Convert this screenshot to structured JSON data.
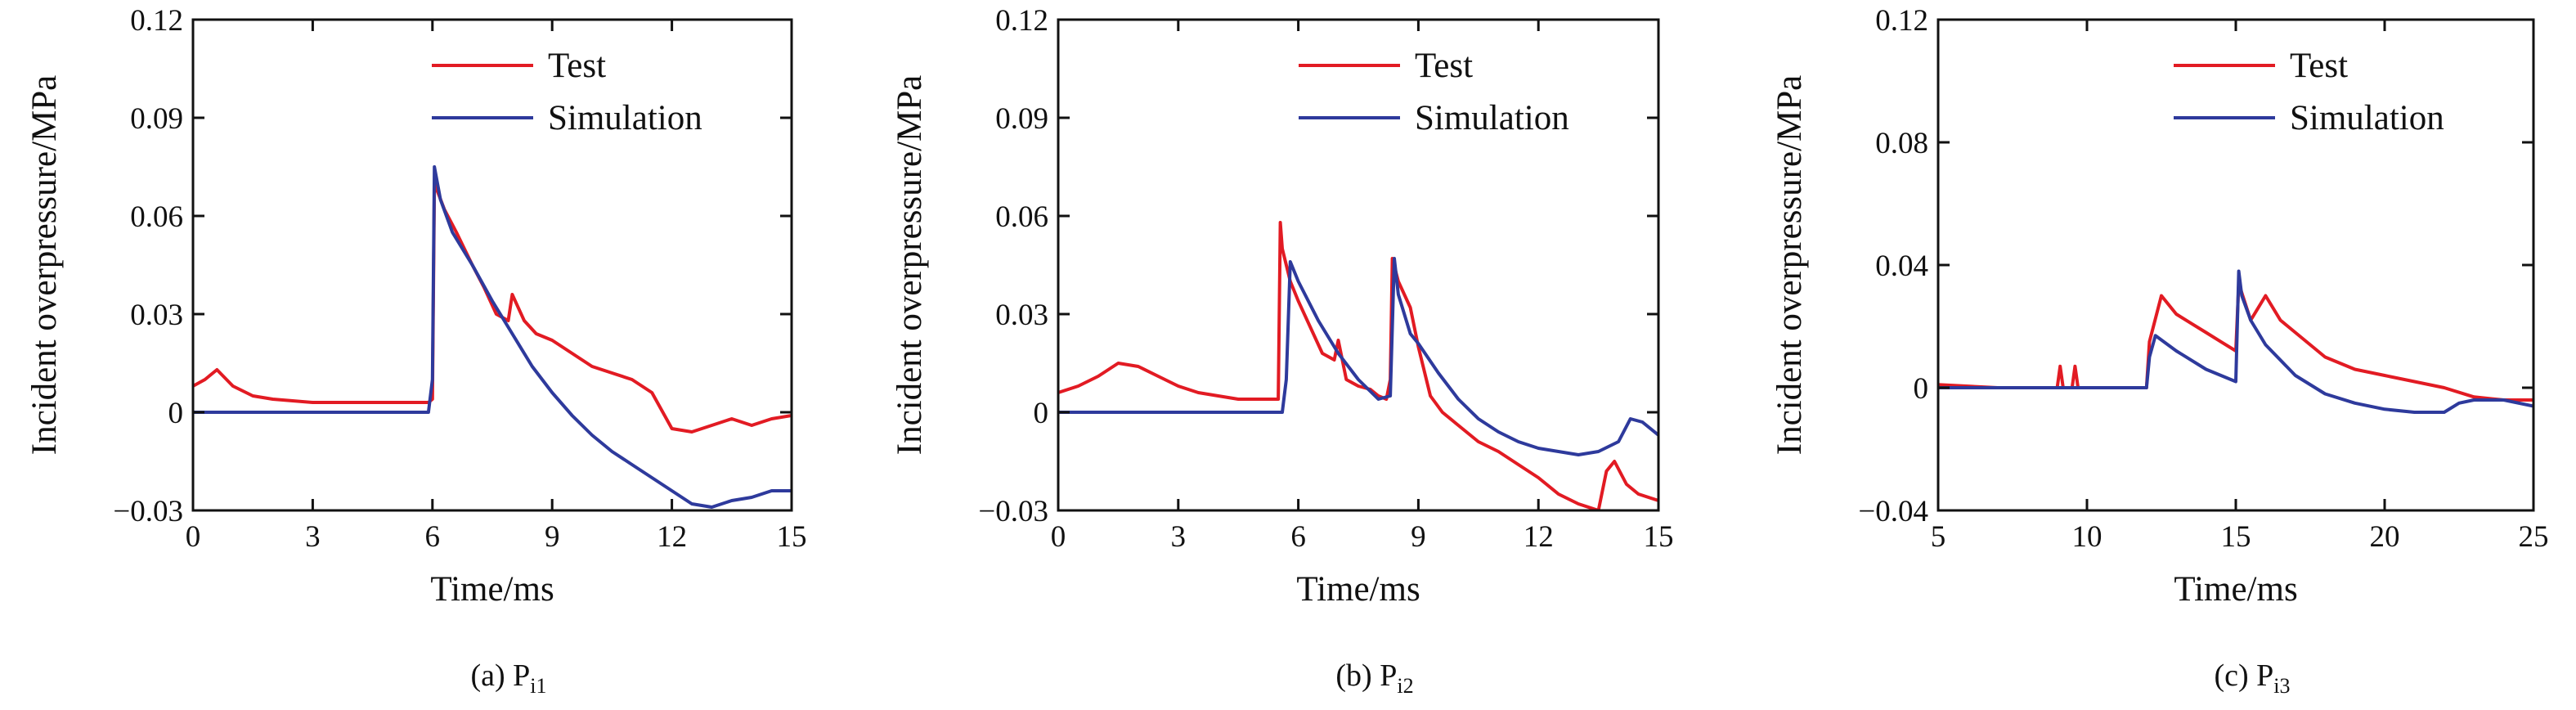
{
  "colors": {
    "test": "#e21b23",
    "simulation": "#2e3a9c",
    "axis": "#111111"
  },
  "chart_data": [
    {
      "type": "line",
      "caption": "(a) P",
      "caption_sub": "i1",
      "xlabel": "Time/ms",
      "ylabel": "Incident overpressure/MPa",
      "xlim": [
        0,
        15
      ],
      "ylim": [
        -0.03,
        0.12
      ],
      "xticks": [
        0,
        3,
        6,
        9,
        12,
        15
      ],
      "xtick_labels": [
        "0",
        "3",
        "6",
        "9",
        "12",
        "15"
      ],
      "yticks": [
        -0.03,
        0,
        0.03,
        0.06,
        0.09,
        0.12
      ],
      "ytick_labels": [
        "−0.03",
        "0",
        "0.03",
        "0.06",
        "0.09",
        "0.12"
      ],
      "legend_position": "top-right",
      "series": [
        {
          "name": "Test",
          "color": "#e21b23",
          "x": [
            0,
            0.3,
            0.6,
            1.0,
            1.5,
            2.0,
            3.0,
            4.0,
            5.0,
            5.9,
            6.0,
            6.05,
            6.3,
            6.6,
            6.8,
            7.0,
            7.3,
            7.6,
            7.9,
            8.0,
            8.3,
            8.6,
            9.0,
            9.5,
            10.0,
            10.5,
            11.0,
            11.5,
            12.0,
            12.5,
            13.0,
            13.5,
            14.0,
            14.5,
            15.0
          ],
          "y": [
            0.008,
            0.01,
            0.013,
            0.008,
            0.005,
            0.004,
            0.003,
            0.003,
            0.003,
            0.003,
            0.004,
            0.07,
            0.062,
            0.055,
            0.05,
            0.045,
            0.038,
            0.03,
            0.028,
            0.036,
            0.028,
            0.024,
            0.022,
            0.018,
            0.014,
            0.012,
            0.01,
            0.006,
            -0.005,
            -0.006,
            -0.004,
            -0.002,
            -0.004,
            -0.002,
            -0.001
          ]
        },
        {
          "name": "Simulation",
          "color": "#2e3a9c",
          "x": [
            0,
            3,
            5.9,
            6.0,
            6.05,
            6.2,
            6.5,
            7.0,
            7.5,
            8.0,
            8.5,
            9.0,
            9.5,
            10.0,
            10.5,
            11.0,
            11.5,
            12.0,
            12.5,
            13.0,
            13.5,
            14.0,
            14.5,
            15.0
          ],
          "y": [
            0,
            0,
            0,
            0.01,
            0.075,
            0.065,
            0.055,
            0.045,
            0.034,
            0.024,
            0.014,
            0.006,
            -0.001,
            -0.007,
            -0.012,
            -0.016,
            -0.02,
            -0.024,
            -0.028,
            -0.029,
            -0.027,
            -0.026,
            -0.024,
            -0.024
          ]
        }
      ]
    },
    {
      "type": "line",
      "caption": "(b) P",
      "caption_sub": "i2",
      "xlabel": "Time/ms",
      "ylabel": "Incident overpressure/MPa",
      "xlim": [
        0,
        15
      ],
      "ylim": [
        -0.03,
        0.12
      ],
      "xticks": [
        0,
        3,
        6,
        9,
        12,
        15
      ],
      "xtick_labels": [
        "0",
        "3",
        "6",
        "9",
        "12",
        "15"
      ],
      "yticks": [
        -0.03,
        0,
        0.03,
        0.06,
        0.09,
        0.12
      ],
      "ytick_labels": [
        "−0.03",
        "0",
        "0.03",
        "0.06",
        "0.09",
        "0.12"
      ],
      "legend_position": "top-right",
      "series": [
        {
          "name": "Test",
          "color": "#e21b23",
          "x": [
            0,
            0.5,
            1.0,
            1.5,
            2.0,
            2.5,
            3.0,
            3.5,
            4.0,
            4.5,
            5.0,
            5.5,
            5.55,
            5.6,
            5.8,
            6.0,
            6.3,
            6.6,
            6.9,
            7.0,
            7.2,
            7.5,
            7.8,
            8.0,
            8.2,
            8.3,
            8.35,
            8.5,
            8.8,
            9.0,
            9.3,
            9.6,
            10.0,
            10.5,
            11.0,
            11.5,
            12.0,
            12.5,
            13.0,
            13.5,
            13.7,
            13.9,
            14.2,
            14.5,
            15.0
          ],
          "y": [
            0.006,
            0.008,
            0.011,
            0.015,
            0.014,
            0.011,
            0.008,
            0.006,
            0.005,
            0.004,
            0.004,
            0.004,
            0.058,
            0.05,
            0.04,
            0.034,
            0.026,
            0.018,
            0.016,
            0.022,
            0.01,
            0.008,
            0.007,
            0.005,
            0.004,
            0.01,
            0.047,
            0.04,
            0.032,
            0.02,
            0.005,
            0.0,
            -0.004,
            -0.009,
            -0.012,
            -0.016,
            -0.02,
            -0.025,
            -0.028,
            -0.03,
            -0.018,
            -0.015,
            -0.022,
            -0.025,
            -0.027
          ]
        },
        {
          "name": "Simulation",
          "color": "#2e3a9c",
          "x": [
            0,
            3,
            5.6,
            5.7,
            5.8,
            6.0,
            6.5,
            7.0,
            7.5,
            8.0,
            8.3,
            8.4,
            8.5,
            8.8,
            9.0,
            9.5,
            10.0,
            10.5,
            11.0,
            11.5,
            12.0,
            12.5,
            13.0,
            13.5,
            14.0,
            14.3,
            14.6,
            15.0
          ],
          "y": [
            0,
            0,
            0,
            0.01,
            0.046,
            0.04,
            0.028,
            0.018,
            0.01,
            0.004,
            0.005,
            0.047,
            0.036,
            0.024,
            0.021,
            0.012,
            0.004,
            -0.002,
            -0.006,
            -0.009,
            -0.011,
            -0.012,
            -0.013,
            -0.012,
            -0.009,
            -0.002,
            -0.003,
            -0.007
          ]
        }
      ]
    },
    {
      "type": "line",
      "caption": "(c) P",
      "caption_sub": "i3",
      "xlabel": "Time/ms",
      "ylabel": "Incident overpressure/MPa",
      "xlim": [
        5,
        25
      ],
      "ylim": [
        -0.04,
        0.12
      ],
      "xticks": [
        5,
        10,
        15,
        20,
        25
      ],
      "xtick_labels": [
        "5",
        "10",
        "15",
        "20",
        "25"
      ],
      "yticks": [
        -0.04,
        0,
        0.04,
        0.08,
        0.12
      ],
      "ytick_labels": [
        "−0.04",
        "0",
        "0.04",
        "0.08",
        "0.12"
      ],
      "legend_position": "top-right",
      "series": [
        {
          "name": "Test",
          "color": "#e21b23",
          "x": [
            5,
            7,
            9,
            9.1,
            9.2,
            9.5,
            9.6,
            9.7,
            10,
            11,
            12,
            12.1,
            12.5,
            13,
            13.5,
            14,
            14.5,
            15,
            15.1,
            15.5,
            16,
            16.5,
            17,
            17.5,
            18,
            19,
            20,
            21,
            22,
            23,
            24,
            25
          ],
          "y": [
            0.001,
            0.0,
            0.0,
            0.007,
            0.0,
            0.0,
            0.007,
            0.0,
            0.0,
            0.0,
            0.0,
            0.015,
            0.03,
            0.024,
            0.021,
            0.018,
            0.015,
            0.012,
            0.034,
            0.022,
            0.03,
            0.022,
            0.018,
            0.014,
            0.01,
            0.006,
            0.004,
            0.002,
            0.0,
            -0.003,
            -0.004,
            -0.004
          ]
        },
        {
          "name": "Simulation",
          "color": "#2e3a9c",
          "x": [
            5,
            8,
            12,
            12.1,
            12.3,
            13,
            14,
            15,
            15.1,
            15.2,
            15.5,
            16,
            17,
            18,
            19,
            20,
            21,
            22,
            22.5,
            23,
            24,
            25
          ],
          "y": [
            0,
            0,
            0,
            0.01,
            0.017,
            0.012,
            0.006,
            0.002,
            0.038,
            0.03,
            0.022,
            0.014,
            0.004,
            -0.002,
            -0.005,
            -0.007,
            -0.008,
            -0.008,
            -0.005,
            -0.004,
            -0.004,
            -0.006
          ]
        }
      ]
    }
  ]
}
